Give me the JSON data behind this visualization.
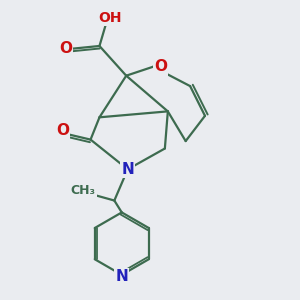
{
  "bg_color": "#eaecf0",
  "bond_color": "#3d6b4f",
  "bond_width": 1.6,
  "atom_colors": {
    "O": "#cc1111",
    "N": "#2222bb",
    "C": "#3d6b4f",
    "H": "#444444"
  },
  "font_size_atom": 11,
  "figsize": [
    3.0,
    3.0
  ],
  "dpi": 100
}
